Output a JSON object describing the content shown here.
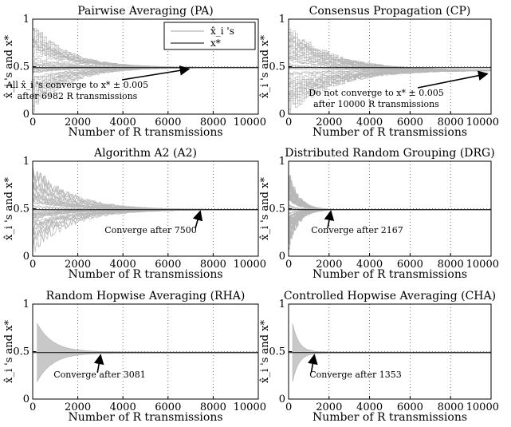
{
  "chart_data": [
    {
      "type": "line",
      "title": "Pairwise Averaging (PA)",
      "xlabel": "Number of R transmissions",
      "ylabel": "x̂_i 's and x*",
      "xlim": [
        0,
        10000
      ],
      "ylim": [
        0,
        1
      ],
      "xticks": [
        "0",
        "2000",
        "4000",
        "6000",
        "8000",
        "10000"
      ],
      "yticks": [
        "0",
        "0.5",
        "1"
      ],
      "grid": true,
      "target": 0.49,
      "series": [
        {
          "name": "x̂_i 's",
          "style": "estimates",
          "spread": 0.5,
          "settle_at": 6982,
          "noise": "step",
          "offset": 0
        },
        {
          "name": "x*",
          "style": "target",
          "value": 0.49
        }
      ],
      "legend": {
        "placement": "top-right",
        "entries": [
          "x̂_i 's",
          "x*"
        ]
      },
      "annotation": {
        "lines": [
          "All x̂_i 's converge to x* ± 0.005",
          "after 6982 R transmissions"
        ],
        "arrow_to": [
          7000,
          0.5
        ]
      }
    },
    {
      "type": "line",
      "title": "Consensus Propagation (CP)",
      "xlabel": "Number of R transmissions",
      "ylabel": "x̂_i 's and x*",
      "xlim": [
        0,
        10000
      ],
      "ylim": [
        0,
        1
      ],
      "xticks": [
        "0",
        "2000",
        "4000",
        "6000",
        "8000",
        "10000"
      ],
      "yticks": [
        "0",
        "0.5",
        "1"
      ],
      "grid": true,
      "target": 0.49,
      "series": [
        {
          "name": "x̂_i 's",
          "style": "estimates",
          "spread": 0.5,
          "settle_at": 10000,
          "noise": "step",
          "offset": -0.03
        },
        {
          "name": "x*",
          "style": "target",
          "value": 0.49
        }
      ],
      "annotation": {
        "lines": [
          "Do not converge to x* ± 0.005",
          "after 10000 R transmissions"
        ],
        "arrow_to": [
          9900,
          0.45
        ]
      }
    },
    {
      "type": "line",
      "title": "Algorithm A2 (A2)",
      "xlabel": "Number of R transmissions",
      "ylabel": "x̂_i 's and x*",
      "xlim": [
        0,
        10000
      ],
      "ylim": [
        0,
        1
      ],
      "xticks": [
        "0",
        "2000",
        "4000",
        "6000",
        "8000",
        "10000"
      ],
      "yticks": [
        "0",
        "0.5",
        "1"
      ],
      "grid": true,
      "target": 0.49,
      "series": [
        {
          "name": "x̂_i 's",
          "style": "estimates",
          "spread": 0.5,
          "settle_at": 7500,
          "noise": "smooth",
          "offset": 0
        },
        {
          "name": "x*",
          "style": "target",
          "value": 0.49
        }
      ],
      "annotation": {
        "lines": [
          "Converge after 7500"
        ],
        "arrow_to": [
          7500,
          0.5
        ]
      }
    },
    {
      "type": "line",
      "title": "Distributed Random Grouping (DRG)",
      "xlabel": "Number of R transmissions",
      "ylabel": "x̂_i 's and x*",
      "xlim": [
        0,
        10000
      ],
      "ylim": [
        0,
        1
      ],
      "xticks": [
        "0",
        "2000",
        "4000",
        "6000",
        "8000",
        "10000"
      ],
      "yticks": [
        "0",
        "0.5",
        "1"
      ],
      "grid": true,
      "target": 0.49,
      "series": [
        {
          "name": "x̂_i 's",
          "style": "estimates",
          "spread": 0.45,
          "settle_at": 2167,
          "noise": "step",
          "offset": 0
        },
        {
          "name": "x*",
          "style": "target",
          "value": 0.49
        }
      ],
      "annotation": {
        "lines": [
          "Converge after 2167"
        ],
        "arrow_to": [
          2167,
          0.5
        ]
      }
    },
    {
      "type": "line",
      "title": "Random Hopwise Averaging (RHA)",
      "xlabel": "Number of R transmissions",
      "ylabel": "x̂_i 's and x*",
      "xlim": [
        0,
        10000
      ],
      "ylim": [
        0,
        1
      ],
      "xticks": [
        "0",
        "2000",
        "4000",
        "6000",
        "8000",
        "10000"
      ],
      "yticks": [
        "0",
        "0.5",
        "1"
      ],
      "grid": true,
      "target": 0.49,
      "series": [
        {
          "name": "x̂_i 's",
          "style": "envelope",
          "spread": 0.3,
          "settle_at": 3081,
          "start": 200
        },
        {
          "name": "x*",
          "style": "target",
          "value": 0.49
        }
      ],
      "annotation": {
        "lines": [
          "Converge after 3081"
        ],
        "arrow_to": [
          3081,
          0.49
        ]
      }
    },
    {
      "type": "line",
      "title": "Controlled Hopwise Averaging (CHA)",
      "xlabel": "Number of R transmissions",
      "ylabel": "x̂_i 's and x*",
      "xlim": [
        0,
        10000
      ],
      "ylim": [
        0,
        1
      ],
      "xticks": [
        "0",
        "2000",
        "4000",
        "6000",
        "8000",
        "10000"
      ],
      "yticks": [
        "0",
        "0.5",
        "1"
      ],
      "grid": true,
      "target": 0.49,
      "series": [
        {
          "name": "x̂_i 's",
          "style": "envelope",
          "spread": 0.3,
          "settle_at": 1353,
          "start": 200
        },
        {
          "name": "x*",
          "style": "target",
          "value": 0.49
        }
      ],
      "annotation": {
        "lines": [
          "Converge after 1353"
        ],
        "arrow_to": [
          1353,
          0.49
        ]
      }
    }
  ]
}
